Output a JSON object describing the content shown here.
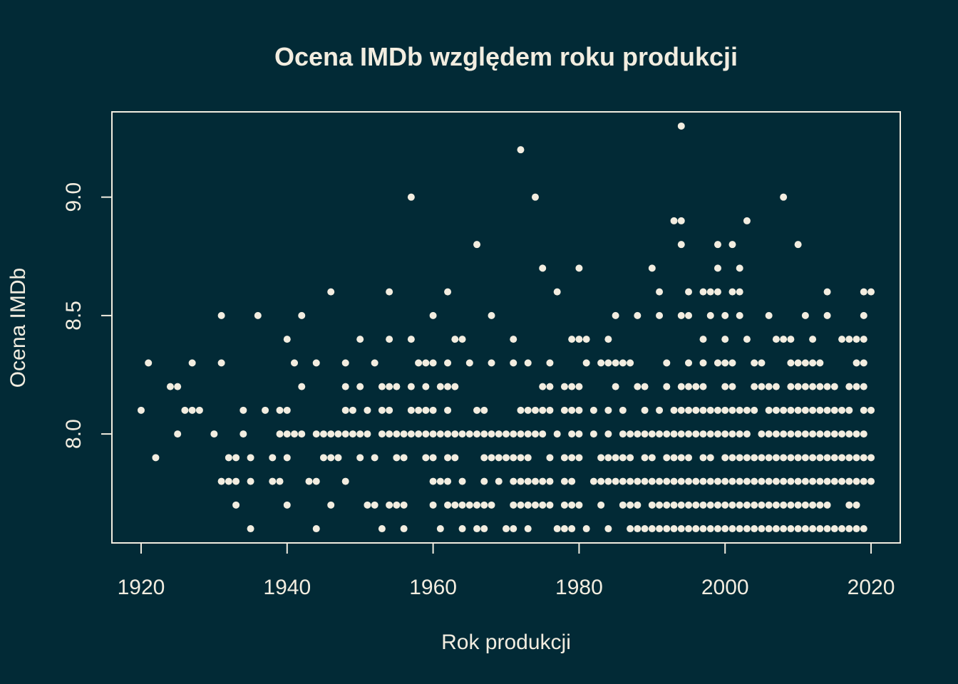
{
  "theme": {
    "background": "#022a36",
    "foreground": "#f2ede0"
  },
  "chart_data": {
    "type": "scatter",
    "title": "Ocena IMDb względem roku produkcji",
    "xlabel": "Rok produkcji",
    "ylabel": "Ocena IMDb",
    "xlim": [
      1916,
      2024
    ],
    "ylim": [
      7.54,
      9.36
    ],
    "xticks": [
      1920,
      1940,
      1960,
      1980,
      2000,
      2020
    ],
    "yticks": [
      "8.0",
      "8.5",
      "9.0"
    ],
    "grid": false,
    "legend": "none",
    "columns": [
      {
        "year": 1920,
        "values": [
          8.1
        ]
      },
      {
        "year": 1921,
        "values": [
          8.3
        ]
      },
      {
        "year": 1922,
        "values": [
          7.9
        ]
      },
      {
        "year": 1924,
        "values": [
          8.2
        ]
      },
      {
        "year": 1925,
        "values": [
          8.2,
          8.0
        ]
      },
      {
        "year": 1926,
        "values": [
          8.1
        ]
      },
      {
        "year": 1927,
        "values": [
          8.3,
          8.1
        ]
      },
      {
        "year": 1928,
        "values": [
          8.1
        ]
      },
      {
        "year": 1930,
        "values": [
          8.0
        ]
      },
      {
        "year": 1931,
        "values": [
          8.5,
          8.3,
          7.8
        ]
      },
      {
        "year": 1932,
        "values": [
          7.9,
          7.8
        ]
      },
      {
        "year": 1933,
        "values": [
          7.9,
          7.8,
          7.7
        ]
      },
      {
        "year": 1934,
        "values": [
          8.1,
          8.0
        ]
      },
      {
        "year": 1935,
        "values": [
          7.9,
          7.8,
          7.6
        ]
      },
      {
        "year": 1936,
        "values": [
          8.5
        ]
      },
      {
        "year": 1937,
        "values": [
          8.1
        ]
      },
      {
        "year": 1938,
        "values": [
          7.9,
          7.8
        ]
      },
      {
        "year": 1939,
        "values": [
          8.1,
          8.0,
          7.8
        ]
      },
      {
        "year": 1940,
        "values": [
          8.4,
          8.1,
          8.0,
          7.9,
          7.7
        ]
      },
      {
        "year": 1941,
        "values": [
          8.3,
          8.0
        ]
      },
      {
        "year": 1942,
        "values": [
          8.5,
          8.2,
          8.0
        ]
      },
      {
        "year": 1943,
        "values": [
          7.8
        ]
      },
      {
        "year": 1944,
        "values": [
          8.3,
          8.0,
          7.8,
          7.6
        ]
      },
      {
        "year": 1945,
        "values": [
          8.0,
          7.9
        ]
      },
      {
        "year": 1946,
        "values": [
          8.6,
          8.0,
          7.9,
          7.7
        ]
      },
      {
        "year": 1947,
        "values": [
          8.0,
          7.9
        ]
      },
      {
        "year": 1948,
        "values": [
          8.3,
          8.2,
          8.1,
          8.0,
          7.8
        ]
      },
      {
        "year": 1949,
        "values": [
          8.1,
          8.0
        ]
      },
      {
        "year": 1950,
        "values": [
          8.4,
          8.2,
          8.0,
          7.9
        ]
      },
      {
        "year": 1951,
        "values": [
          8.1,
          8.0,
          7.7
        ]
      },
      {
        "year": 1952,
        "values": [
          8.3,
          7.9,
          7.7
        ]
      },
      {
        "year": 1953,
        "values": [
          8.2,
          8.1,
          8.0,
          7.6
        ]
      },
      {
        "year": 1954,
        "values": [
          8.6,
          8.4,
          8.2,
          8.1,
          8.0,
          7.7
        ]
      },
      {
        "year": 1955,
        "values": [
          8.2,
          8.0,
          7.9,
          7.7
        ]
      },
      {
        "year": 1956,
        "values": [
          8.0,
          7.9,
          7.7,
          7.6
        ]
      },
      {
        "year": 1957,
        "values": [
          9.0,
          8.4,
          8.2,
          8.1,
          8.0
        ]
      },
      {
        "year": 1958,
        "values": [
          8.3,
          8.1,
          8.0
        ]
      },
      {
        "year": 1959,
        "values": [
          8.3,
          8.2,
          8.1,
          8.0,
          7.9
        ]
      },
      {
        "year": 1960,
        "values": [
          8.5,
          8.3,
          8.1,
          8.0,
          7.9,
          7.8,
          7.7
        ]
      },
      {
        "year": 1961,
        "values": [
          8.2,
          8.0,
          7.8,
          7.6
        ]
      },
      {
        "year": 1962,
        "values": [
          8.6,
          8.3,
          8.2,
          8.1,
          8.0,
          7.9,
          7.8,
          7.7
        ]
      },
      {
        "year": 1963,
        "values": [
          8.4,
          8.2,
          8.0,
          7.9,
          7.7
        ]
      },
      {
        "year": 1964,
        "values": [
          8.4,
          8.0,
          7.8,
          7.7,
          7.6
        ]
      },
      {
        "year": 1965,
        "values": [
          8.3,
          8.0,
          7.7
        ]
      },
      {
        "year": 1966,
        "values": [
          8.8,
          8.1,
          8.0,
          7.7,
          7.6
        ]
      },
      {
        "year": 1967,
        "values": [
          8.1,
          8.0,
          7.9,
          7.8,
          7.7,
          7.6
        ]
      },
      {
        "year": 1968,
        "values": [
          8.5,
          8.3,
          8.0,
          7.9,
          7.7
        ]
      },
      {
        "year": 1969,
        "values": [
          8.0,
          7.9,
          7.8
        ]
      },
      {
        "year": 1970,
        "values": [
          8.0,
          7.9,
          7.6
        ]
      },
      {
        "year": 1971,
        "values": [
          8.4,
          8.3,
          8.0,
          7.9,
          7.8,
          7.7,
          7.6
        ]
      },
      {
        "year": 1972,
        "values": [
          9.2,
          8.1,
          8.0,
          7.9,
          7.8,
          7.7
        ]
      },
      {
        "year": 1973,
        "values": [
          8.3,
          8.1,
          8.0,
          7.9,
          7.8,
          7.7,
          7.6
        ]
      },
      {
        "year": 1974,
        "values": [
          9.0,
          8.1,
          8.0,
          7.8,
          7.7
        ]
      },
      {
        "year": 1975,
        "values": [
          8.7,
          8.2,
          8.1,
          8.0,
          7.8,
          7.7
        ]
      },
      {
        "year": 1976,
        "values": [
          8.3,
          8.2,
          8.1,
          7.9,
          7.8,
          7.7
        ]
      },
      {
        "year": 1977,
        "values": [
          8.6,
          8.0,
          7.6
        ]
      },
      {
        "year": 1978,
        "values": [
          8.2,
          8.1,
          7.9,
          7.8,
          7.7,
          7.6
        ]
      },
      {
        "year": 1979,
        "values": [
          8.4,
          8.2,
          8.1,
          8.0,
          7.9,
          7.8,
          7.7,
          7.6
        ]
      },
      {
        "year": 1980,
        "values": [
          8.7,
          8.4,
          8.2,
          8.1,
          8.0,
          7.9,
          7.7
        ]
      },
      {
        "year": 1981,
        "values": [
          8.4,
          8.3,
          7.6
        ]
      },
      {
        "year": 1982,
        "values": [
          8.1,
          8.0,
          7.8
        ]
      },
      {
        "year": 1983,
        "values": [
          8.3,
          7.9,
          7.8,
          7.7
        ]
      },
      {
        "year": 1984,
        "values": [
          8.4,
          8.3,
          8.1,
          8.0,
          7.9,
          7.8,
          7.6
        ]
      },
      {
        "year": 1985,
        "values": [
          8.5,
          8.3,
          8.2,
          7.9,
          7.8
        ]
      },
      {
        "year": 1986,
        "values": [
          8.3,
          8.1,
          8.0,
          7.9,
          7.8,
          7.7
        ]
      },
      {
        "year": 1987,
        "values": [
          8.3,
          8.0,
          7.9,
          7.8,
          7.7,
          7.6
        ]
      },
      {
        "year": 1988,
        "values": [
          8.5,
          8.2,
          8.0,
          7.8,
          7.7,
          7.6
        ]
      },
      {
        "year": 1989,
        "values": [
          8.2,
          8.1,
          8.0,
          7.9,
          7.8,
          7.6
        ]
      },
      {
        "year": 1990,
        "values": [
          8.7,
          8.0,
          7.9,
          7.8,
          7.7,
          7.6
        ]
      },
      {
        "year": 1991,
        "values": [
          8.6,
          8.5,
          8.1,
          8.0,
          7.8,
          7.7,
          7.6
        ]
      },
      {
        "year": 1992,
        "values": [
          8.3,
          8.2,
          8.0,
          7.9,
          7.8,
          7.7,
          7.6
        ]
      },
      {
        "year": 1993,
        "values": [
          8.9,
          8.1,
          8.0,
          7.9,
          7.8,
          7.7,
          7.6
        ]
      },
      {
        "year": 1994,
        "values": [
          9.3,
          8.9,
          8.8,
          8.5,
          8.2,
          8.1,
          8.0,
          7.9,
          7.8,
          7.7,
          7.6
        ]
      },
      {
        "year": 1995,
        "values": [
          8.6,
          8.5,
          8.3,
          8.2,
          8.1,
          8.0,
          7.9,
          7.8,
          7.7,
          7.6
        ]
      },
      {
        "year": 1996,
        "values": [
          8.2,
          8.1,
          8.0,
          7.8,
          7.7,
          7.6
        ]
      },
      {
        "year": 1997,
        "values": [
          8.6,
          8.4,
          8.3,
          8.2,
          8.1,
          8.0,
          7.9,
          7.8,
          7.7,
          7.6
        ]
      },
      {
        "year": 1998,
        "values": [
          8.6,
          8.5,
          8.1,
          8.0,
          7.9,
          7.8,
          7.7,
          7.6
        ]
      },
      {
        "year": 1999,
        "values": [
          8.8,
          8.7,
          8.6,
          8.3,
          8.1,
          8.0,
          7.8,
          7.7,
          7.6
        ]
      },
      {
        "year": 2000,
        "values": [
          8.5,
          8.4,
          8.3,
          8.2,
          8.1,
          8.0,
          7.9,
          7.8,
          7.7,
          7.6
        ]
      },
      {
        "year": 2001,
        "values": [
          8.8,
          8.6,
          8.3,
          8.2,
          8.1,
          8.0,
          7.9,
          7.8,
          7.7,
          7.6
        ]
      },
      {
        "year": 2002,
        "values": [
          8.7,
          8.6,
          8.5,
          8.1,
          8.0,
          7.9,
          7.8,
          7.7,
          7.6
        ]
      },
      {
        "year": 2003,
        "values": [
          8.9,
          8.4,
          8.1,
          8.0,
          7.9,
          7.8,
          7.7,
          7.6
        ]
      },
      {
        "year": 2004,
        "values": [
          8.3,
          8.2,
          8.1,
          7.9,
          7.8,
          7.7,
          7.6
        ]
      },
      {
        "year": 2005,
        "values": [
          8.3,
          8.2,
          8.0,
          7.9,
          7.8,
          7.7,
          7.6
        ]
      },
      {
        "year": 2006,
        "values": [
          8.5,
          8.2,
          8.1,
          8.0,
          7.9,
          7.8,
          7.7,
          7.6
        ]
      },
      {
        "year": 2007,
        "values": [
          8.4,
          8.2,
          8.1,
          8.0,
          7.9,
          7.8,
          7.7,
          7.6
        ]
      },
      {
        "year": 2008,
        "values": [
          9.0,
          8.4,
          8.1,
          8.0,
          7.9,
          7.8,
          7.7,
          7.6
        ]
      },
      {
        "year": 2009,
        "values": [
          8.4,
          8.3,
          8.2,
          8.1,
          8.0,
          7.9,
          7.8,
          7.7,
          7.6
        ]
      },
      {
        "year": 2010,
        "values": [
          8.8,
          8.3,
          8.2,
          8.1,
          8.0,
          7.9,
          7.8,
          7.7,
          7.6
        ]
      },
      {
        "year": 2011,
        "values": [
          8.5,
          8.3,
          8.2,
          8.1,
          8.0,
          7.9,
          7.8,
          7.7,
          7.6
        ]
      },
      {
        "year": 2012,
        "values": [
          8.4,
          8.3,
          8.2,
          8.1,
          8.0,
          7.9,
          7.8,
          7.7,
          7.6
        ]
      },
      {
        "year": 2013,
        "values": [
          8.3,
          8.2,
          8.1,
          8.0,
          7.9,
          7.8,
          7.7,
          7.6
        ]
      },
      {
        "year": 2014,
        "values": [
          8.6,
          8.5,
          8.2,
          8.1,
          8.0,
          7.9,
          7.8,
          7.7,
          7.6
        ]
      },
      {
        "year": 2015,
        "values": [
          8.2,
          8.1,
          8.0,
          7.9,
          7.8,
          7.6
        ]
      },
      {
        "year": 2016,
        "values": [
          8.4,
          8.1,
          8.0,
          7.9,
          7.8,
          7.6
        ]
      },
      {
        "year": 2017,
        "values": [
          8.4,
          8.2,
          8.1,
          8.0,
          7.9,
          7.8,
          7.7,
          7.6
        ]
      },
      {
        "year": 2018,
        "values": [
          8.4,
          8.3,
          8.2,
          8.0,
          7.9,
          7.8,
          7.7,
          7.6
        ]
      },
      {
        "year": 2019,
        "values": [
          8.6,
          8.5,
          8.4,
          8.3,
          8.2,
          8.1,
          8.0,
          7.9,
          7.8,
          7.6
        ]
      },
      {
        "year": 2020,
        "values": [
          8.6,
          8.1,
          7.9,
          7.8
        ]
      }
    ]
  }
}
